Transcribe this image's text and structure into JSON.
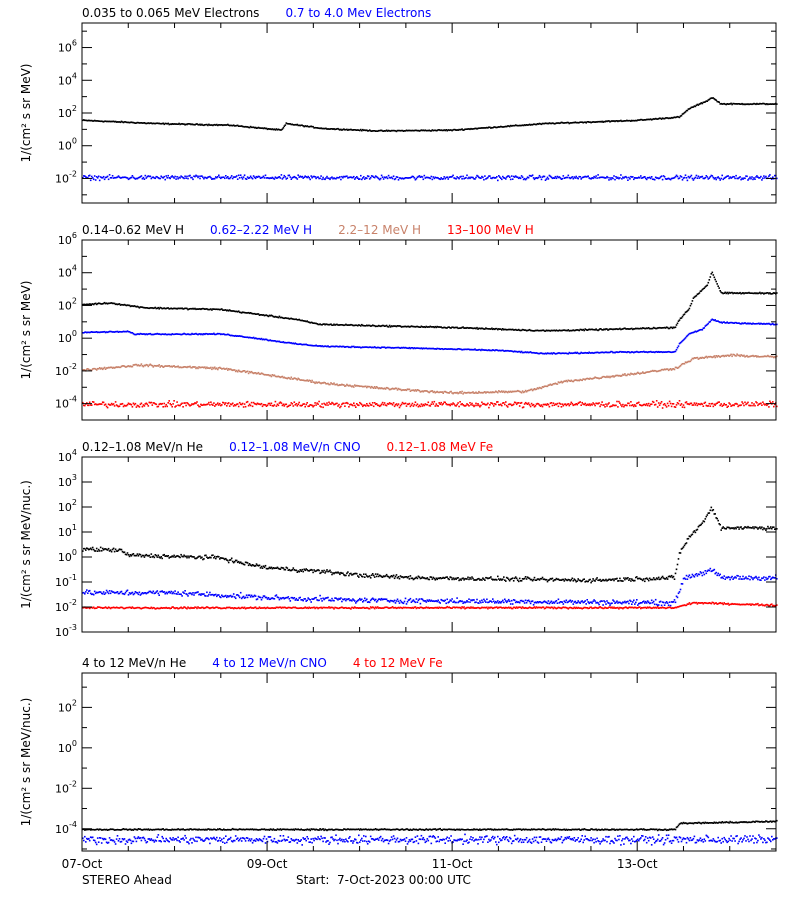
{
  "footer": {
    "spacecraft": "STEREO Ahead",
    "start": "Start:  7-Oct-2023 00:00 UTC"
  },
  "x_axis": {
    "range_days": [
      0,
      7.5
    ],
    "ticks": [
      {
        "day": 0,
        "label": "07-Oct"
      },
      {
        "day": 2,
        "label": "09-Oct"
      },
      {
        "day": 4,
        "label": "11-Oct"
      },
      {
        "day": 6,
        "label": "13-Oct"
      }
    ]
  },
  "chart_data": [
    {
      "type": "scatter",
      "ylabel": "1/(cm² s sr MeV)",
      "log_y": true,
      "ylim_log10": [
        -3.5,
        7.5
      ],
      "yticks": [
        {
          "exp": -2,
          "label": "10",
          "sup": "-2"
        },
        {
          "exp": 0,
          "label": "10",
          "sup": "0"
        },
        {
          "exp": 2,
          "label": "10",
          "sup": "2"
        },
        {
          "exp": 4,
          "label": "10",
          "sup": "4"
        },
        {
          "exp": 6,
          "label": "10",
          "sup": "6"
        }
      ],
      "series": [
        {
          "name": "0.035 to 0.065 MeV Electrons",
          "color": "#000000",
          "noise": 0.05,
          "points": [
            [
              0,
              1.6
            ],
            [
              0.8,
              1.4
            ],
            [
              1.6,
              1.3
            ],
            [
              2.15,
              1.0
            ],
            [
              2.2,
              1.4
            ],
            [
              2.6,
              1.1
            ],
            [
              3.2,
              0.95
            ],
            [
              4.0,
              1.0
            ],
            [
              5.0,
              1.4
            ],
            [
              6.0,
              1.6
            ],
            [
              6.45,
              1.8
            ],
            [
              6.55,
              2.3
            ],
            [
              6.75,
              2.8
            ],
            [
              6.8,
              3.0
            ],
            [
              6.9,
              2.6
            ],
            [
              7.5,
              2.6
            ]
          ]
        },
        {
          "name": "0.7 to 4.0 Mev Electrons",
          "color": "#0000ff",
          "noise": 0.2,
          "points": [
            [
              0,
              -1.9
            ],
            [
              7.5,
              -1.9
            ]
          ]
        }
      ]
    },
    {
      "type": "scatter",
      "ylabel": "1/(cm² s sr MeV)",
      "log_y": true,
      "ylim_log10": [
        -5,
        6
      ],
      "yticks": [
        {
          "exp": -4,
          "label": "10",
          "sup": "-4"
        },
        {
          "exp": -2,
          "label": "10",
          "sup": "-2"
        },
        {
          "exp": 0,
          "label": "10",
          "sup": "0"
        },
        {
          "exp": 2,
          "label": "10",
          "sup": "2"
        },
        {
          "exp": 4,
          "label": "10",
          "sup": "4"
        },
        {
          "exp": 6,
          "label": "10",
          "sup": "6"
        }
      ],
      "series": [
        {
          "name": "0.14–0.62 MeV H",
          "color": "#000000",
          "noise": 0.06,
          "points": [
            [
              0,
              2.1
            ],
            [
              0.3,
              2.2
            ],
            [
              0.55,
              2.0
            ],
            [
              0.7,
              1.9
            ],
            [
              1.5,
              1.8
            ],
            [
              1.9,
              1.5
            ],
            [
              2.3,
              1.2
            ],
            [
              2.55,
              0.9
            ],
            [
              3.2,
              0.8
            ],
            [
              4.0,
              0.7
            ],
            [
              5.0,
              0.5
            ],
            [
              5.8,
              0.6
            ],
            [
              6.4,
              0.7
            ],
            [
              6.45,
              1.2
            ],
            [
              6.55,
              1.8
            ],
            [
              6.6,
              2.5
            ],
            [
              6.75,
              3.3
            ],
            [
              6.8,
              4.1
            ],
            [
              6.9,
              2.8
            ],
            [
              7.5,
              2.8
            ]
          ]
        },
        {
          "name": "0.62–2.22 MeV H",
          "color": "#0000ff",
          "noise": 0.05,
          "points": [
            [
              0,
              0.4
            ],
            [
              0.5,
              0.45
            ],
            [
              0.55,
              0.3
            ],
            [
              1.5,
              0.3
            ],
            [
              1.8,
              0.1
            ],
            [
              2.3,
              -0.3
            ],
            [
              2.6,
              -0.45
            ],
            [
              3.5,
              -0.55
            ],
            [
              4.5,
              -0.7
            ],
            [
              5.0,
              -0.9
            ],
            [
              5.8,
              -0.8
            ],
            [
              6.4,
              -0.8
            ],
            [
              6.45,
              -0.3
            ],
            [
              6.55,
              0.3
            ],
            [
              6.7,
              0.6
            ],
            [
              6.8,
              1.2
            ],
            [
              6.9,
              1.0
            ],
            [
              7.5,
              0.9
            ]
          ]
        },
        {
          "name": "2.2–12 MeV H",
          "color": "#c8826a",
          "noise": 0.1,
          "points": [
            [
              0,
              -1.9
            ],
            [
              0.6,
              -1.6
            ],
            [
              1.5,
              -1.8
            ],
            [
              2.0,
              -2.2
            ],
            [
              2.6,
              -2.7
            ],
            [
              3.2,
              -3.0
            ],
            [
              4.0,
              -3.3
            ],
            [
              4.8,
              -3.2
            ],
            [
              5.2,
              -2.6
            ],
            [
              6.0,
              -2.1
            ],
            [
              6.4,
              -1.8
            ],
            [
              6.6,
              -1.2
            ],
            [
              7.0,
              -1.0
            ],
            [
              7.5,
              -1.1
            ]
          ]
        },
        {
          "name": "13–100 MeV H",
          "color": "#ff0000",
          "noise": 0.25,
          "points": [
            [
              0,
              -4.0
            ],
            [
              7.5,
              -4.0
            ]
          ]
        }
      ]
    },
    {
      "type": "scatter",
      "ylabel": "1/(cm² s sr MeV/nuc.)",
      "log_y": true,
      "ylim_log10": [
        -3,
        4
      ],
      "yticks": [
        {
          "exp": -3,
          "label": "10",
          "sup": "-3"
        },
        {
          "exp": -2,
          "label": "10",
          "sup": "-2"
        },
        {
          "exp": -1,
          "label": "10",
          "sup": "-1"
        },
        {
          "exp": 0,
          "label": "10",
          "sup": "0"
        },
        {
          "exp": 1,
          "label": "10",
          "sup": "1"
        },
        {
          "exp": 2,
          "label": "10",
          "sup": "2"
        },
        {
          "exp": 3,
          "label": "10",
          "sup": "3"
        },
        {
          "exp": 4,
          "label": "10",
          "sup": "4"
        }
      ],
      "series": [
        {
          "name": "0.12–1.08 MeV/n He",
          "color": "#000000",
          "noise": 0.12,
          "points": [
            [
              0,
              0.35
            ],
            [
              0.4,
              0.3
            ],
            [
              0.5,
              0.1
            ],
            [
              1.0,
              0.05
            ],
            [
              1.5,
              0.0
            ],
            [
              1.7,
              -0.2
            ],
            [
              2.0,
              -0.4
            ],
            [
              2.6,
              -0.55
            ],
            [
              3.0,
              -0.7
            ],
            [
              3.6,
              -0.8
            ],
            [
              4.5,
              -0.85
            ],
            [
              5.5,
              -0.9
            ],
            [
              6.4,
              -0.8
            ],
            [
              6.45,
              0.2
            ],
            [
              6.55,
              0.8
            ],
            [
              6.7,
              1.4
            ],
            [
              6.8,
              2.0
            ],
            [
              6.9,
              1.2
            ],
            [
              7.5,
              1.2
            ]
          ]
        },
        {
          "name": "0.12–1.08 MeV/n CNO",
          "color": "#0000ff",
          "noise": 0.15,
          "points": [
            [
              0,
              -1.4
            ],
            [
              1.0,
              -1.4
            ],
            [
              2.0,
              -1.6
            ],
            [
              3.0,
              -1.7
            ],
            [
              6.4,
              -1.8
            ],
            [
              6.5,
              -0.8
            ],
            [
              6.8,
              -0.5
            ],
            [
              6.9,
              -0.8
            ],
            [
              7.5,
              -0.8
            ]
          ]
        },
        {
          "name": "0.12–1.08 MeV Fe",
          "color": "#ff0000",
          "noise": 0.05,
          "points": [
            [
              0,
              -2.0
            ],
            [
              6.4,
              -2.0
            ],
            [
              6.6,
              -1.8
            ],
            [
              7.5,
              -1.9
            ]
          ]
        }
      ]
    },
    {
      "type": "scatter",
      "ylabel": "1/(cm² s sr MeV/nuc.)",
      "log_y": true,
      "ylim_log10": [
        -5.1,
        3.7
      ],
      "yticks": [
        {
          "exp": -4,
          "label": "10",
          "sup": "-4"
        },
        {
          "exp": -2,
          "label": "10",
          "sup": "-2"
        },
        {
          "exp": 0,
          "label": "10",
          "sup": "0"
        },
        {
          "exp": 2,
          "label": "10",
          "sup": "2"
        }
      ],
      "series": [
        {
          "name": "4 to 12 MeV/n He",
          "color": "#000000",
          "noise": 0.05,
          "points": [
            [
              0,
              -4.0
            ],
            [
              6.4,
              -4.0
            ],
            [
              6.45,
              -3.7
            ],
            [
              7.5,
              -3.6
            ]
          ]
        },
        {
          "name": "4 to 12 MeV/n CNO",
          "color": "#0000ff",
          "noise": 0.3,
          "points": [
            [
              0,
              -4.5
            ],
            [
              7.5,
              -4.5
            ]
          ]
        },
        {
          "name": "4 to 12 MeV Fe",
          "color": "#ff0000",
          "noise": 0.3,
          "points": []
        }
      ]
    }
  ]
}
